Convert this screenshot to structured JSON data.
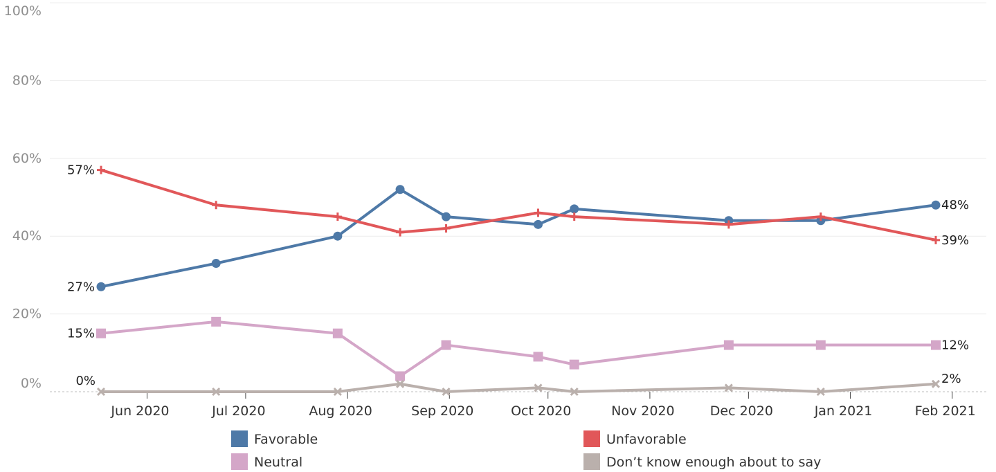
{
  "chart_data": {
    "type": "line",
    "y_ticks": [
      "0%",
      "20%",
      "40%",
      "60%",
      "80%",
      "100%"
    ],
    "y_tick_values": [
      0,
      20,
      40,
      60,
      80,
      100
    ],
    "ylim": [
      0,
      100
    ],
    "x_ticks": [
      "Jun 2020",
      "Jul 2020",
      "Aug 2020",
      "Sep 2020",
      "Oct 2020",
      "Nov 2020",
      "Dec 2020",
      "Jan 2021",
      "Feb 2021"
    ],
    "x_tick_dates": [
      "2020-06-01",
      "2020-07-01",
      "2020-08-01",
      "2020-09-01",
      "2020-10-01",
      "2020-11-01",
      "2020-12-01",
      "2021-01-01",
      "2021-02-01"
    ],
    "xlim": [
      "2020-05-15",
      "2021-02-05"
    ],
    "x": [
      "2020-05-18",
      "2020-06-22",
      "2020-07-29",
      "2020-08-17",
      "2020-08-31",
      "2020-09-28",
      "2020-10-09",
      "2020-11-25",
      "2020-12-23",
      "2021-01-27"
    ],
    "grid": true,
    "legend_position": "bottom",
    "series": [
      {
        "name": "Favorable",
        "color": "#4e79a7",
        "marker": "circle",
        "values": [
          27,
          33,
          40,
          52,
          45,
          43,
          47,
          44,
          44,
          48
        ],
        "label_first": "27%",
        "label_last": "48%"
      },
      {
        "name": "Unfavorable",
        "color": "#e15759",
        "marker": "plus",
        "values": [
          57,
          48,
          45,
          41,
          42,
          46,
          45,
          43,
          45,
          39
        ],
        "label_first": "57%",
        "label_last": "39%"
      },
      {
        "name": "Neutral",
        "color": "#d4a6c8",
        "marker": "square",
        "values": [
          15,
          18,
          15,
          4,
          12,
          9,
          7,
          12,
          12,
          12
        ],
        "label_first": "15%",
        "label_last": "12%"
      },
      {
        "name": "Don’t know enough about to say",
        "color": "#bab0ac",
        "marker": "x",
        "values": [
          0,
          0,
          0,
          2,
          0,
          1,
          0,
          1,
          0,
          2
        ],
        "label_first": "0%",
        "label_last": "2%"
      }
    ]
  }
}
